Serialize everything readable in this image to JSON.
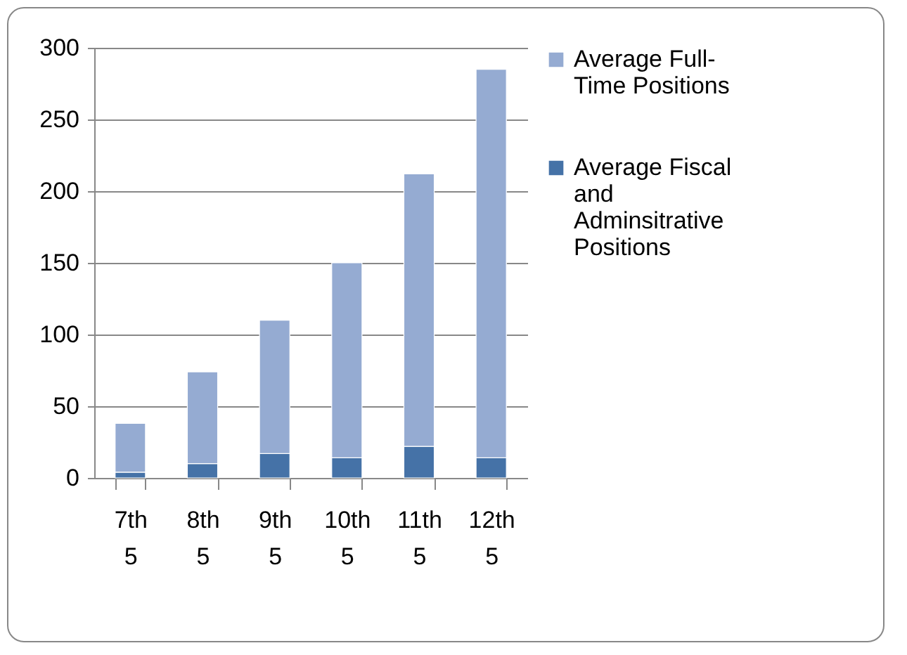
{
  "chart_data": {
    "type": "bar",
    "stacked": true,
    "categories": [
      "7th 5",
      "8th 5",
      "9th 5",
      "10th 5",
      "11th 5",
      "12th 5"
    ],
    "series": [
      {
        "name": "Average Fiscal and Adminsitrative Positions",
        "color": "#4572a7",
        "values": [
          4,
          10,
          17,
          14,
          22,
          14
        ]
      },
      {
        "name": "Average Full-Time Positions",
        "color": "#95abd2",
        "values": [
          34,
          64,
          93,
          136,
          190,
          271
        ]
      }
    ],
    "ylim": [
      0,
      300
    ],
    "yticks": [
      0,
      50,
      100,
      150,
      200,
      250,
      300
    ],
    "grid": "y",
    "legend": "right"
  }
}
